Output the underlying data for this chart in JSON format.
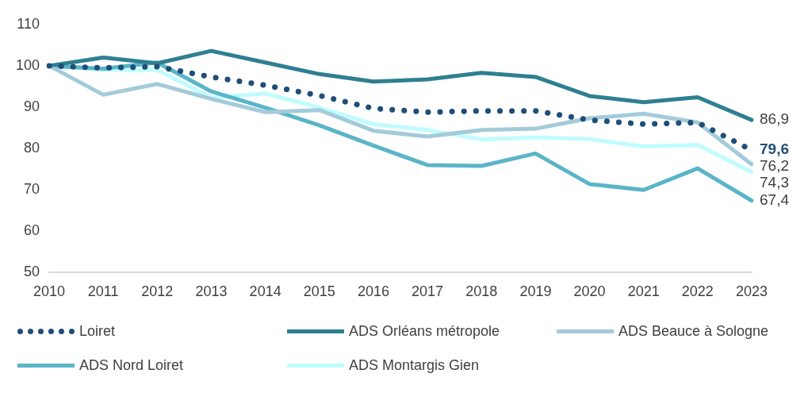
{
  "chart_data": {
    "type": "line",
    "categories": [
      "2010",
      "2011",
      "2012",
      "2013",
      "2014",
      "2015",
      "2016",
      "2017",
      "2018",
      "2019",
      "2020",
      "2021",
      "2022",
      "2023"
    ],
    "ylim": [
      50,
      110
    ],
    "yticks": [
      50,
      60,
      70,
      80,
      90,
      100,
      110
    ],
    "grid": false,
    "legend": "bottom",
    "marker": "none",
    "series": [
      {
        "name": "Loiret",
        "color": "#1f4e79",
        "line_style": "dotted",
        "values": [
          100,
          99.5,
          99.8,
          97.3,
          95.3,
          92.8,
          89.7,
          88.8,
          89.1,
          89.1,
          86.9,
          85.9,
          86.3,
          79.6
        ],
        "value_labels": [
          null,
          null,
          null,
          null,
          null,
          null,
          null,
          null,
          null,
          null,
          null,
          null,
          null,
          "79,6"
        ]
      },
      {
        "name": "ADS Orléans métropole",
        "color": "#2e7f91",
        "line_style": "solid",
        "values": [
          100,
          102.0,
          100.6,
          103.6,
          100.8,
          98.0,
          96.2,
          96.7,
          98.3,
          97.3,
          92.7,
          91.2,
          92.4,
          86.9
        ],
        "value_labels": [
          null,
          null,
          null,
          null,
          null,
          null,
          null,
          null,
          null,
          null,
          null,
          null,
          null,
          "86,9"
        ]
      },
      {
        "name": "ADS Beauce à Sologne",
        "color": "#a3cbd9",
        "line_style": "solid",
        "values": [
          100,
          93.0,
          95.6,
          92.0,
          88.8,
          89.3,
          84.3,
          82.9,
          84.5,
          84.8,
          87.3,
          88.4,
          86.3,
          76.2
        ],
        "value_labels": [
          null,
          null,
          null,
          null,
          null,
          null,
          null,
          null,
          null,
          null,
          null,
          null,
          null,
          "76,2"
        ]
      },
      {
        "name": "ADS Nord Loiret",
        "color": "#5ab5c8",
        "line_style": "solid",
        "values": [
          100,
          99.3,
          100.8,
          93.8,
          89.9,
          85.6,
          80.7,
          76.0,
          75.8,
          78.8,
          71.4,
          70.0,
          75.2,
          67.4
        ],
        "value_labels": [
          null,
          null,
          null,
          null,
          null,
          null,
          null,
          null,
          null,
          null,
          null,
          null,
          null,
          "67,4"
        ]
      },
      {
        "name": "ADS Montargis Gien",
        "color": "#bffcff",
        "line_style": "solid",
        "values": [
          100,
          99.0,
          99.0,
          92.3,
          93.3,
          89.9,
          85.9,
          84.5,
          82.2,
          82.7,
          82.3,
          80.5,
          80.9,
          74.3
        ],
        "value_labels": [
          null,
          null,
          null,
          null,
          null,
          null,
          null,
          null,
          null,
          null,
          null,
          null,
          null,
          "74,3"
        ]
      }
    ]
  }
}
